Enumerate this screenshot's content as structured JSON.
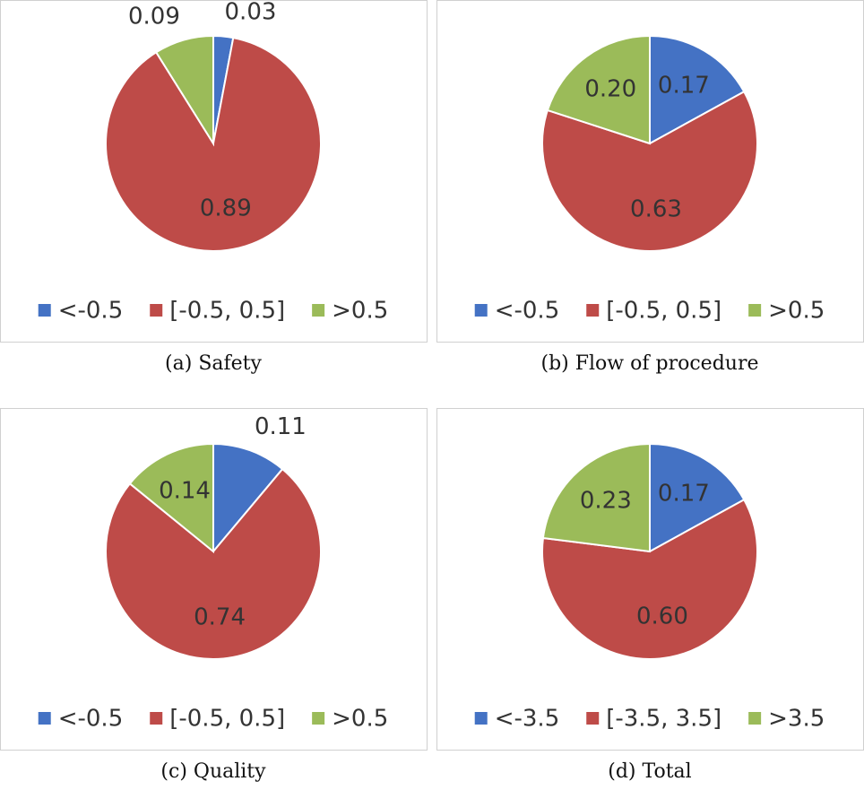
{
  "chart_data": [
    {
      "type": "pie",
      "title": "(a) Safety",
      "categories": [
        "<-0.5",
        "[-0.5, 0.5]",
        ">0.5"
      ],
      "values": [
        0.03,
        0.89,
        0.09
      ],
      "value_labels": [
        "0.03",
        "0.89",
        "0.09"
      ],
      "colors": [
        "#4472c4",
        "#be4b48",
        "#9bbb59"
      ]
    },
    {
      "type": "pie",
      "title": "(b) Flow of procedure",
      "categories": [
        "<-0.5",
        "[-0.5, 0.5]",
        ">0.5"
      ],
      "values": [
        0.17,
        0.63,
        0.2
      ],
      "value_labels": [
        "0.17",
        "0.63",
        "0.20"
      ],
      "colors": [
        "#4472c4",
        "#be4b48",
        "#9bbb59"
      ]
    },
    {
      "type": "pie",
      "title": "(c) Quality",
      "categories": [
        "<-0.5",
        "[-0.5, 0.5]",
        ">0.5"
      ],
      "values": [
        0.11,
        0.74,
        0.14
      ],
      "value_labels": [
        "0.11",
        "0.74",
        "0.14"
      ],
      "colors": [
        "#4472c4",
        "#be4b48",
        "#9bbb59"
      ]
    },
    {
      "type": "pie",
      "title": "(d) Total",
      "categories": [
        "<-3.5",
        "[-3.5, 3.5]",
        ">3.5"
      ],
      "values": [
        0.17,
        0.6,
        0.23
      ],
      "value_labels": [
        "0.17",
        "0.60",
        "0.23"
      ],
      "colors": [
        "#4472c4",
        "#be4b48",
        "#9bbb59"
      ]
    }
  ]
}
